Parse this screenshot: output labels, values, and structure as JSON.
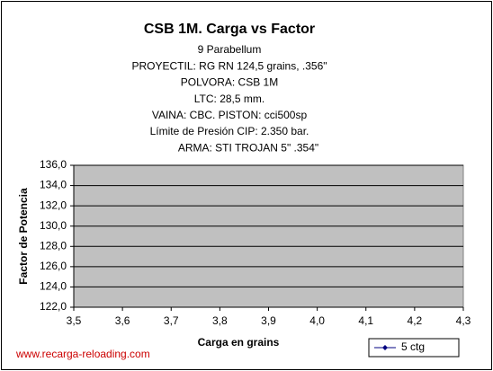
{
  "chart_data": {
    "type": "line",
    "title": "CSB 1M. Carga vs Factor",
    "subtitle": [
      "9 Parabellum",
      "PROYECTIL: RG RN 124,5 grains, .356\"",
      "POLVORA: CSB 1M",
      "LTC: 28,5 mm.",
      "VAINA: CBC. PISTON: cci500sp",
      "Límite de Presión CIP: 2.350 bar.",
      "ARMA: STI TROJAN 5\"  .354\""
    ],
    "x_label": "Carga en grains",
    "y_label": "Factor de Potencia",
    "footer": "www.recarga-reloading.com",
    "x": [],
    "series": [
      {
        "name": "5 ctg",
        "color": "#000080",
        "values": []
      }
    ],
    "xlim": [
      3.5,
      4.3
    ],
    "xticks": [
      {
        "value": 3.5,
        "label": "3,5"
      },
      {
        "value": 3.6,
        "label": "3,6"
      },
      {
        "value": 3.7,
        "label": "3,7"
      },
      {
        "value": 3.8,
        "label": "3,8"
      },
      {
        "value": 3.9,
        "label": "3,9"
      },
      {
        "value": 4.0,
        "label": "4,0"
      },
      {
        "value": 4.1,
        "label": "4,1"
      },
      {
        "value": 4.2,
        "label": "4,2"
      },
      {
        "value": 4.3,
        "label": "4,3"
      }
    ],
    "ylim": [
      122,
      136
    ],
    "yticks": [
      {
        "value": 122,
        "label": "122,0"
      },
      {
        "value": 124,
        "label": "124,0"
      },
      {
        "value": 126,
        "label": "126,0"
      },
      {
        "value": 128,
        "label": "128,0"
      },
      {
        "value": 130,
        "label": "130,0"
      },
      {
        "value": 132,
        "label": "132,0"
      },
      {
        "value": 134,
        "label": "134,0"
      },
      {
        "value": 136,
        "label": "136,0"
      }
    ],
    "grid": true,
    "plot_color": "#c0c0c0",
    "legend": "bottom-right"
  }
}
